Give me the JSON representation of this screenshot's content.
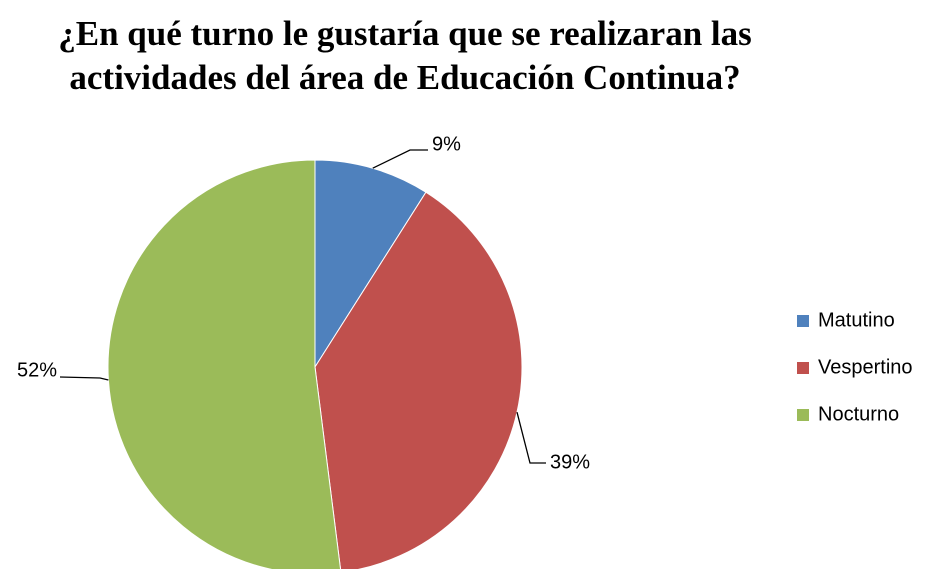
{
  "chart_data": {
    "type": "pie",
    "title": "¿En qué turno le gustaría que se realizaran las actividades del área de Educación Continua?",
    "categories": [
      "Matutino",
      "Vespertino",
      "Nocturno"
    ],
    "values": [
      9,
      39,
      52
    ],
    "value_labels": [
      "9%",
      "39%",
      "52%"
    ],
    "colors": [
      "#4f81bd",
      "#c0504d",
      "#9bbb59"
    ],
    "legend": "right"
  }
}
